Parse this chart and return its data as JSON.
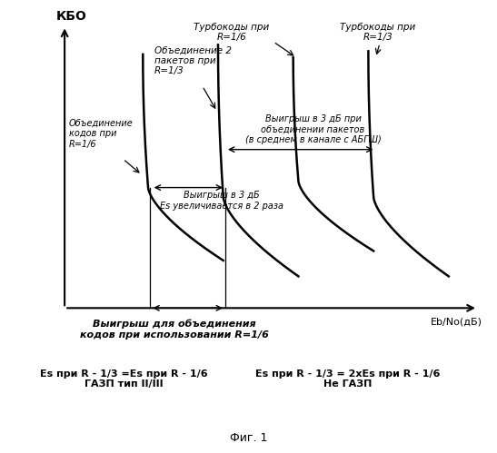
{
  "title": "Фиг. 1",
  "ylabel": "КБО",
  "xlabel": "Eb/No(дБ)",
  "background_color": "#ffffff",
  "curve_centers": [
    2.0,
    3.8,
    5.6,
    7.4
  ],
  "annotations": {
    "label1": "Объединение\nкодов при\nR=1/6",
    "label2": "Объединение 2\nпакетов при\nR=1/3",
    "label3": "Турбокоды при\nR=1/6",
    "label4": "Турбокоды при\nR=1/3",
    "label5": "Выигрыш в 3 дБ при\nобъединении пакетов\n(в среднем в канале с АБГШ)",
    "label6": "Выигрыш в 3 дБ\nEs увеличивается в 2 раза",
    "label7": "Выигрыш для объединения\nкодов при использовании R=1/6",
    "label8_left": "Es при R - 1/3 =Es при R - 1/6\nГАЗП тип II/III",
    "label8_right": "Es при R - 1/3 = 2xEs при R - 1/6\nНе ГАЗП"
  }
}
